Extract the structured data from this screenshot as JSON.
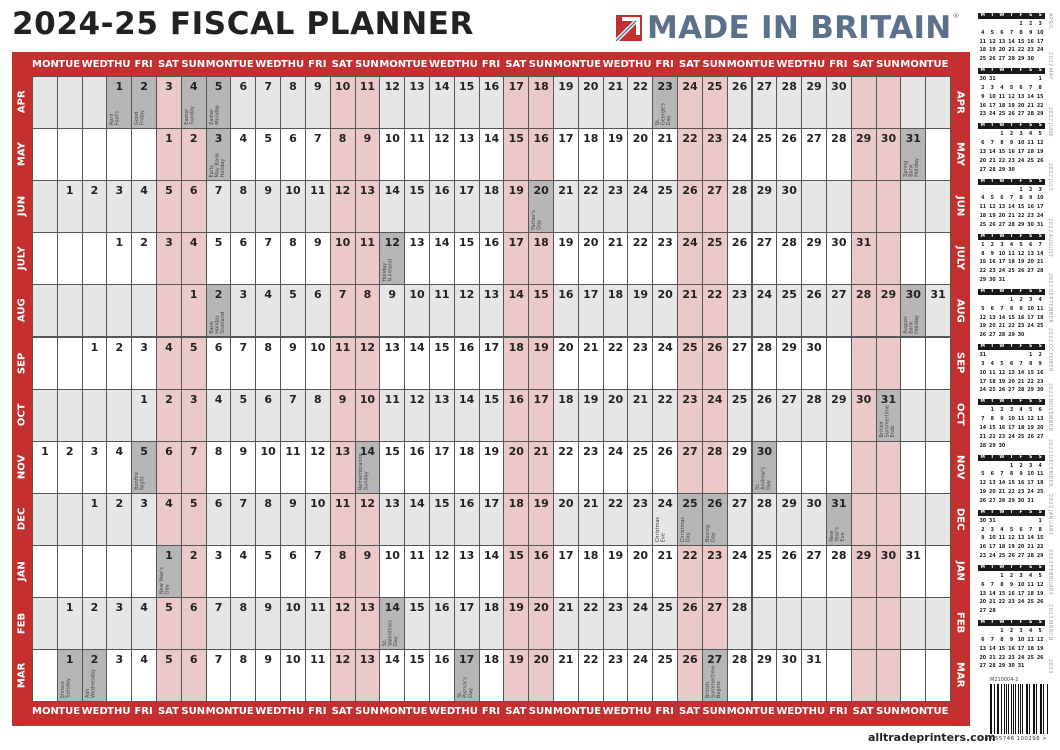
{
  "title": "2024-25 FISCAL PLANNER",
  "logo": {
    "text": "MADE IN BRITAIN",
    "reg": "®"
  },
  "website": "alltradeprinters.com",
  "colors": {
    "red": "#c3302f",
    "weekend": "#ebc9c9",
    "holiday": "#b6b6b6",
    "alt_row": "#e6e6e6",
    "plain_row": "#ffffff",
    "logo_blue": "#5b7189"
  },
  "weekdays": [
    "MON",
    "TUE",
    "WED",
    "THU",
    "FRI",
    "SAT",
    "SUN"
  ],
  "columns": 37,
  "months": [
    {
      "label": "APR",
      "start": 3,
      "days": 30,
      "holidays": [
        {
          "day": 1,
          "text": "April\nFool's",
          "shade": true
        },
        {
          "day": 2,
          "text": "Good\nFriday",
          "shade": true
        },
        {
          "day": 4,
          "text": "Easter\nSunday",
          "shade": true
        },
        {
          "day": 5,
          "text": "Easter\nMonday",
          "shade": true
        },
        {
          "day": 23,
          "text": "St.\nGeorge's\nDay",
          "shade": true
        }
      ]
    },
    {
      "label": "MAY",
      "start": 5,
      "days": 31,
      "holidays": [
        {
          "day": 3,
          "text": "Early\nMay Bank\nHoliday",
          "shade": true
        },
        {
          "day": 31,
          "text": "Spring\nBank\nHoliday",
          "shade": true
        }
      ]
    },
    {
      "label": "JUN",
      "start": 1,
      "days": 30,
      "holidays": [
        {
          "day": 20,
          "text": "Father's\nDay",
          "shade": true
        }
      ]
    },
    {
      "label": "JULY",
      "start": 3,
      "days": 31,
      "holidays": [
        {
          "day": 12,
          "text": "Holiday\nN.Ireland",
          "shade": true
        }
      ]
    },
    {
      "label": "AUG",
      "start": 6,
      "days": 31,
      "holidays": [
        {
          "day": 2,
          "text": "Bank\nHoliday\nScotland",
          "shade": true
        },
        {
          "day": 30,
          "text": "August\nBank\nHoliday",
          "shade": true
        }
      ]
    },
    {
      "label": "SEP",
      "start": 2,
      "days": 30,
      "holidays": []
    },
    {
      "label": "OCT",
      "start": 4,
      "days": 31,
      "holidays": [
        {
          "day": 31,
          "text": "British\nSummertime\nEnds\n\nHalloween",
          "shade": true
        }
      ]
    },
    {
      "label": "NOV",
      "start": 0,
      "days": 30,
      "holidays": [
        {
          "day": 5,
          "text": "Bonfire\nNight",
          "shade": true
        },
        {
          "day": 14,
          "text": "Remembrance\nSunday",
          "shade": true
        },
        {
          "day": 30,
          "text": "St.\nAndrew's\nDay",
          "shade": true
        }
      ]
    },
    {
      "label": "DEC",
      "start": 2,
      "days": 31,
      "holidays": [
        {
          "day": 24,
          "text": "Christmas\nEve",
          "shade": false
        },
        {
          "day": 25,
          "text": "Christmas\nDay",
          "shade": true
        },
        {
          "day": 26,
          "text": "Boxing\nDay",
          "shade": true
        },
        {
          "day": 31,
          "text": "New\nYear's\nEve",
          "shade": true
        }
      ]
    },
    {
      "label": "JAN",
      "start": 5,
      "days": 31,
      "holidays": [
        {
          "day": 1,
          "text": "New Year's\nDay",
          "shade": true
        }
      ]
    },
    {
      "label": "FEB",
      "start": 1,
      "days": 28,
      "holidays": [
        {
          "day": 14,
          "text": "St.\nValentines\nDay",
          "shade": true
        }
      ]
    },
    {
      "label": "MAR",
      "start": 1,
      "days": 31,
      "holidays": [
        {
          "day": 1,
          "text": "Shrove\nTuesday",
          "shade": true
        },
        {
          "day": 2,
          "text": "Ash\nWednesday",
          "shade": true
        },
        {
          "day": 17,
          "text": "St.\nPatrick's\nDay",
          "shade": true
        },
        {
          "day": 27,
          "text": "British\nSummertime\nBegins\n\nMother's Day",
          "shade": true
        }
      ]
    }
  ],
  "mini_weekdays": [
    "M",
    "T",
    "W",
    "T",
    "F",
    "S",
    "S"
  ],
  "mini_calendars": [
    {
      "month": "APRIL",
      "year": "2022",
      "start": 4,
      "days": 30
    },
    {
      "month": "MAY",
      "year": "2022",
      "start": 6,
      "days": 31
    },
    {
      "month": "JUNE",
      "year": "2022",
      "start": 2,
      "days": 30
    },
    {
      "month": "JULY",
      "year": "2022",
      "start": 4,
      "days": 31
    },
    {
      "month": "AUGUST",
      "year": "2022",
      "start": 0,
      "days": 31
    },
    {
      "month": "SEPTEMBER",
      "year": "2022",
      "start": 3,
      "days": 30
    },
    {
      "month": "OCTOBER",
      "year": "2022",
      "start": 5,
      "days": 31
    },
    {
      "month": "NOVEMBER",
      "year": "2022",
      "start": 1,
      "days": 30
    },
    {
      "month": "DECEMBER",
      "year": "2022",
      "start": 3,
      "days": 31
    },
    {
      "month": "JANUARY",
      "year": "2023",
      "start": 6,
      "days": 31
    },
    {
      "month": "FEBRUARY",
      "year": "2023",
      "start": 2,
      "days": 28
    },
    {
      "month": "MARCH",
      "year": "2023",
      "start": 2,
      "days": 31
    }
  ],
  "product_code": "M210004-2",
  "barcode_number": "5 055746 100298 >"
}
